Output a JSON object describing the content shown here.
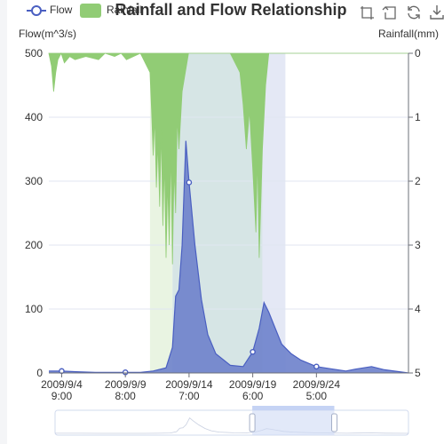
{
  "legend": {
    "flow_label": "Flow",
    "rain_label": "Rainfall",
    "flow_color": "#4a5fc1",
    "rain_color": "#91cc75"
  },
  "toolbox": {
    "icons": [
      "zoom-icon",
      "zoom-reset-icon",
      "restore-icon",
      "save-image-icon"
    ]
  },
  "chart_data": {
    "type": "line",
    "title": "Rainfall and Flow Relationship",
    "y_left": {
      "label": "Flow(m^3/s)",
      "ticks": [
        0,
        100,
        200,
        300,
        400,
        500
      ],
      "range": [
        0,
        500
      ]
    },
    "y_right": {
      "label": "Rainfall(mm)",
      "ticks": [
        0,
        1,
        2,
        3,
        4,
        5
      ],
      "range": [
        0,
        5
      ],
      "inverse": true
    },
    "x_range": [
      "2009/9/3 9:00",
      "2009/10/1 9:00"
    ],
    "x_ticks": [
      [
        "2009/9/4",
        "9:00"
      ],
      [
        "2009/9/9",
        "8:00"
      ],
      [
        "2009/9/14",
        "7:00"
      ],
      [
        "2009/9/19",
        "6:00"
      ],
      [
        "2009/9/24",
        "5:00"
      ]
    ],
    "x_tick_times": [
      "2009/9/4 9:00",
      "2009/9/9 8:00",
      "2009/9/14 7:00",
      "2009/9/19 6:00",
      "2009/9/24 5:00"
    ],
    "series": [
      {
        "name": "Flow",
        "axis": "left",
        "style": "area",
        "points": [
          [
            "2009/9/3 9:00",
            3
          ],
          [
            "2009/9/4 9:00",
            3
          ],
          [
            "2009/9/5 12:00",
            2
          ],
          [
            "2009/9/7 0:00",
            1
          ],
          [
            "2009/9/9 8:00",
            1
          ],
          [
            "2009/9/10 12:00",
            1
          ],
          [
            "2009/9/11 12:00",
            3
          ],
          [
            "2009/9/12 12:00",
            8
          ],
          [
            "2009/9/13 0:00",
            40
          ],
          [
            "2009/9/13 6:00",
            120
          ],
          [
            "2009/9/13 12:00",
            130
          ],
          [
            "2009/9/13 18:00",
            200
          ],
          [
            "2009/9/14 1:00",
            363
          ],
          [
            "2009/9/14 7:00",
            298
          ],
          [
            "2009/9/14 18:00",
            200
          ],
          [
            "2009/9/15 6:00",
            115
          ],
          [
            "2009/9/15 18:00",
            60
          ],
          [
            "2009/9/16 9:00",
            30
          ],
          [
            "2009/9/17 0:00",
            20
          ],
          [
            "2009/9/17 12:00",
            12
          ],
          [
            "2009/9/18 12:00",
            10
          ],
          [
            "2009/9/19 6:00",
            33
          ],
          [
            "2009/9/19 18:00",
            70
          ],
          [
            "2009/9/20 3:00",
            110
          ],
          [
            "2009/9/20 12:00",
            95
          ],
          [
            "2009/9/21 0:00",
            70
          ],
          [
            "2009/9/21 12:00",
            45
          ],
          [
            "2009/9/22 6:00",
            30
          ],
          [
            "2009/9/23 0:00",
            20
          ],
          [
            "2009/9/24 5:00",
            10
          ],
          [
            "2009/9/25 12:00",
            6
          ],
          [
            "2009/9/26 12:00",
            3
          ],
          [
            "2009/9/27 6:00",
            6
          ],
          [
            "2009/9/28 12:00",
            10
          ],
          [
            "2009/9/29 12:00",
            5
          ],
          [
            "2009/10/1 9:00",
            0
          ]
        ],
        "markers": [
          [
            "2009/9/4 9:00",
            3
          ],
          [
            "2009/9/9 8:00",
            1
          ],
          [
            "2009/9/14 7:00",
            298
          ],
          [
            "2009/9/19 6:00",
            33
          ],
          [
            "2009/9/24 5:00",
            10
          ]
        ]
      },
      {
        "name": "Rainfall",
        "axis": "right",
        "style": "inverse-area",
        "points": [
          [
            "2009/9/3 9:00",
            0.0
          ],
          [
            "2009/9/3 14:00",
            0.2
          ],
          [
            "2009/9/3 18:00",
            0.6
          ],
          [
            "2009/9/3 22:00",
            0.3
          ],
          [
            "2009/9/4 2:00",
            0.1
          ],
          [
            "2009/9/4 8:00",
            0.0
          ],
          [
            "2009/9/4 14:00",
            0.15
          ],
          [
            "2009/9/5 0:00",
            0.05
          ],
          [
            "2009/9/5 10:00",
            0.1
          ],
          [
            "2009/9/6 6:00",
            0.05
          ],
          [
            "2009/9/7 6:00",
            0.1
          ],
          [
            "2009/9/7 18:00",
            0.0
          ],
          [
            "2009/9/8 12:00",
            0.05
          ],
          [
            "2009/9/9 0:00",
            0.0
          ],
          [
            "2009/9/9 10:00",
            0.1
          ],
          [
            "2009/9/10 12:00",
            0.0
          ],
          [
            "2009/9/11 6:00",
            0.3
          ],
          [
            "2009/9/11 9:00",
            0.9
          ],
          [
            "2009/9/11 12:00",
            1.6
          ],
          [
            "2009/9/11 15:00",
            1.0
          ],
          [
            "2009/9/11 18:00",
            2.1
          ],
          [
            "2009/9/11 21:00",
            1.4
          ],
          [
            "2009/9/12 0:00",
            2.4
          ],
          [
            "2009/9/12 3:00",
            1.2
          ],
          [
            "2009/9/12 6:00",
            2.7
          ],
          [
            "2009/9/12 9:00",
            1.7
          ],
          [
            "2009/9/12 12:00",
            3.2
          ],
          [
            "2009/9/12 15:00",
            2.0
          ],
          [
            "2009/9/12 18:00",
            3.0
          ],
          [
            "2009/9/12 21:00",
            1.5
          ],
          [
            "2009/9/13 0:00",
            3.3
          ],
          [
            "2009/9/13 3:00",
            1.8
          ],
          [
            "2009/9/13 6:00",
            2.5
          ],
          [
            "2009/9/13 9:00",
            1.0
          ],
          [
            "2009/9/13 12:00",
            1.5
          ],
          [
            "2009/9/13 18:00",
            0.6
          ],
          [
            "2009/9/14 0:00",
            0.3
          ],
          [
            "2009/9/14 6:00",
            0.0
          ],
          [
            "2009/9/17 12:00",
            0.0
          ],
          [
            "2009/9/18 6:00",
            0.3
          ],
          [
            "2009/9/18 12:00",
            0.8
          ],
          [
            "2009/9/18 18:00",
            1.5
          ],
          [
            "2009/9/19 0:00",
            0.9
          ],
          [
            "2009/9/19 6:00",
            1.8
          ],
          [
            "2009/9/19 12:00",
            2.8
          ],
          [
            "2009/9/19 15:00",
            1.6
          ],
          [
            "2009/9/19 18:00",
            3.2
          ],
          [
            "2009/9/20 0:00",
            1.5
          ],
          [
            "2009/9/20 6:00",
            0.5
          ],
          [
            "2009/9/20 12:00",
            0.0
          ],
          [
            "2009/10/1 9:00",
            0.0
          ]
        ]
      }
    ],
    "shaded_ranges": [
      {
        "from": "2009/9/11 6:00",
        "to": "2009/9/13 0:00",
        "color": "#e9f4e2"
      },
      {
        "from": "2009/9/13 0:00",
        "to": "2009/9/20 0:00",
        "color": "#d6e5e5"
      },
      {
        "from": "2009/9/20 0:00",
        "to": "2009/9/21 19:00",
        "color": "#e4e8f5"
      }
    ],
    "data_zoom": {
      "start": "2009/9/19 0:00",
      "end": "2009/9/25 12:00"
    },
    "grid": true
  }
}
